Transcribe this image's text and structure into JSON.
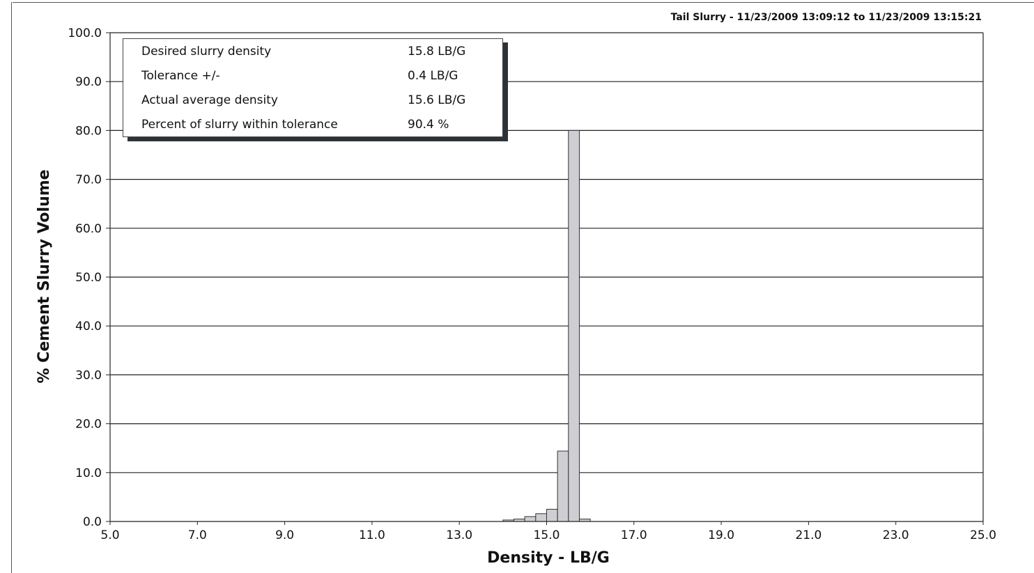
{
  "chart_data": {
    "type": "bar",
    "subtitle": "Tail Slurry - 11/23/2009 13:09:12 to 11/23/2009 13:15:21",
    "xlabel": "Density - LB/G",
    "ylabel": "% Cement Slurry Volume",
    "xlim": [
      5.0,
      25.0
    ],
    "ylim": [
      0.0,
      100.0
    ],
    "x_tick_labels": [
      "5.0",
      "7.0",
      "9.0",
      "11.0",
      "13.0",
      "15.0",
      "17.0",
      "19.0",
      "21.0",
      "23.0",
      "25.0"
    ],
    "y_tick_labels": [
      "0.0",
      "10.0",
      "20.0",
      "30.0",
      "40.0",
      "50.0",
      "60.0",
      "70.0",
      "80.0",
      "90.0",
      "100.0"
    ],
    "grid": true,
    "bin_width": 0.25,
    "bars": [
      {
        "x": 14.0,
        "value": 0.3
      },
      {
        "x": 14.25,
        "value": 0.5
      },
      {
        "x": 14.5,
        "value": 1.0
      },
      {
        "x": 14.75,
        "value": 1.6
      },
      {
        "x": 15.0,
        "value": 2.5
      },
      {
        "x": 15.25,
        "value": 14.4
      },
      {
        "x": 15.5,
        "value": 80.0
      },
      {
        "x": 15.75,
        "value": 0.5
      }
    ],
    "bar_color": "#cfcfd3"
  },
  "info_box": {
    "rows": [
      {
        "label": "Desired slurry density",
        "value": "15.8 LB/G"
      },
      {
        "label": "Tolerance +/-",
        "value": "0.4 LB/G"
      },
      {
        "label": "Actual average density",
        "value": "15.6 LB/G"
      },
      {
        "label": "Percent of slurry within tolerance",
        "value": "90.4 %"
      }
    ]
  }
}
